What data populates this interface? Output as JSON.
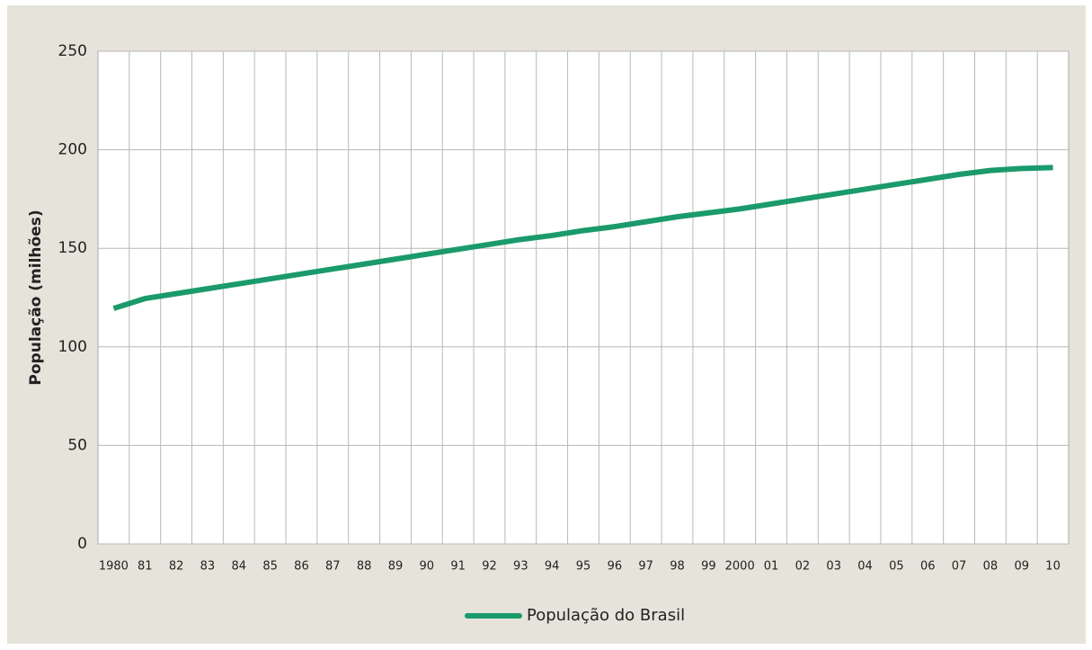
{
  "chart_data": {
    "type": "line",
    "y_label": "População (milhões)",
    "categories": [
      "1980",
      "81",
      "82",
      "83",
      "84",
      "85",
      "86",
      "87",
      "88",
      "89",
      "90",
      "91",
      "92",
      "93",
      "94",
      "95",
      "96",
      "97",
      "98",
      "99",
      "2000",
      "01",
      "02",
      "03",
      "04",
      "05",
      "06",
      "07",
      "08",
      "09",
      "10"
    ],
    "series": [
      {
        "name": "População do Brasil",
        "color": "#1b9a6b",
        "values": [
          119.5,
          124.5,
          127,
          129.5,
          132,
          134.5,
          137,
          139.5,
          142,
          144.5,
          147,
          149.5,
          152,
          154.5,
          156.5,
          159,
          161,
          163.5,
          166,
          168,
          170,
          172.5,
          175,
          177.5,
          180,
          182.5,
          185,
          187.5,
          189.5,
          190.5,
          191
        ]
      }
    ],
    "ylim": [
      0,
      250
    ],
    "yticks": [
      0,
      50,
      100,
      150,
      200,
      250
    ],
    "grid": true,
    "legend": "bottom"
  }
}
